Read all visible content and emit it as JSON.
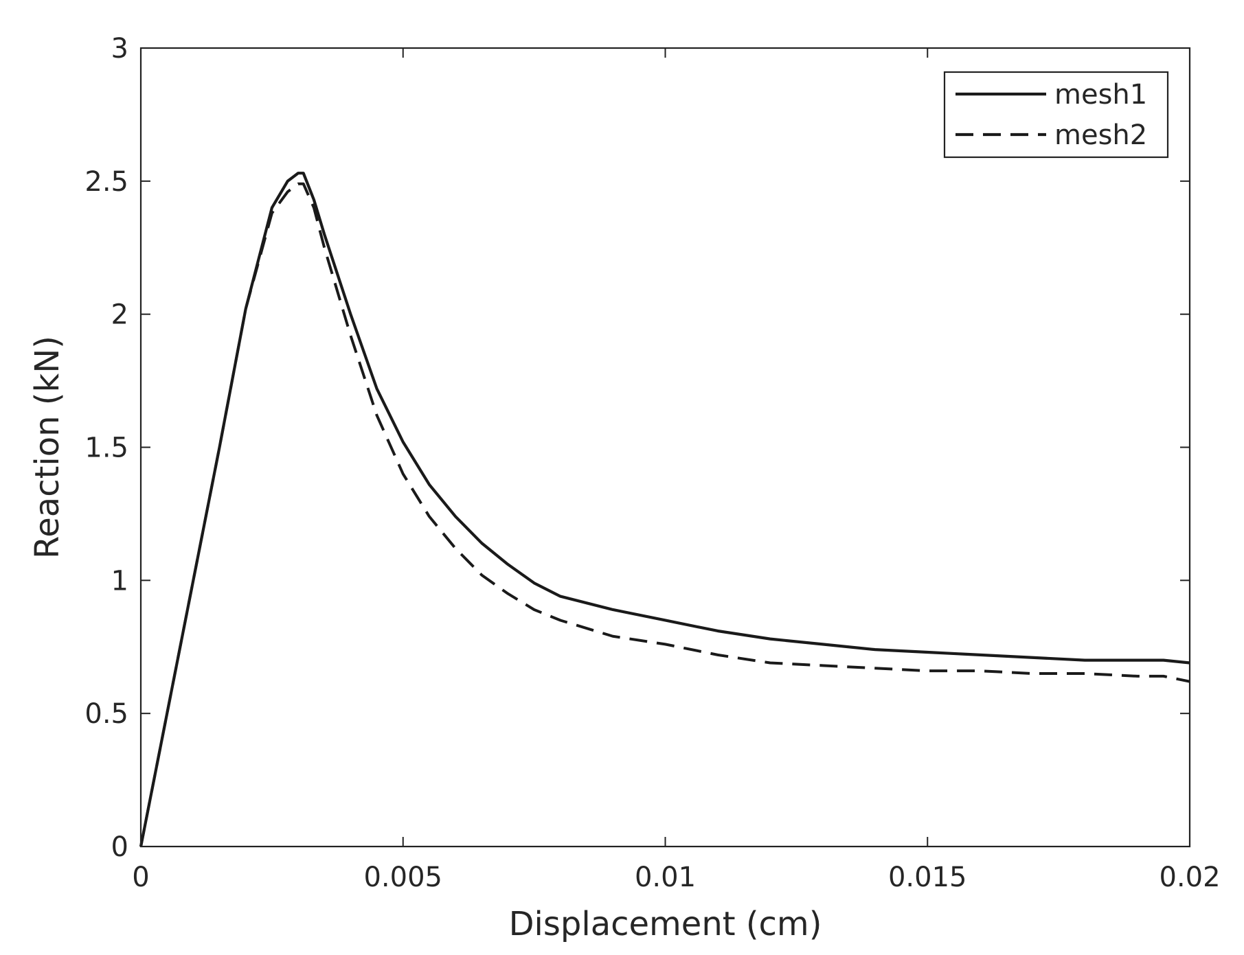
{
  "chart_data": {
    "type": "line",
    "title": "",
    "xlabel": "Displacement (cm)",
    "ylabel": "Reaction (kN)",
    "xlim": [
      0,
      0.02
    ],
    "ylim": [
      0,
      3
    ],
    "grid": false,
    "legend_position": "top-right",
    "xticks": [
      {
        "value": 0,
        "label": "0"
      },
      {
        "value": 0.005,
        "label": "0.005"
      },
      {
        "value": 0.01,
        "label": "0.01"
      },
      {
        "value": 0.015,
        "label": "0.015"
      },
      {
        "value": 0.02,
        "label": "0.02"
      }
    ],
    "yticks": [
      {
        "value": 0,
        "label": "0"
      },
      {
        "value": 0.5,
        "label": "0.5"
      },
      {
        "value": 1,
        "label": "1"
      },
      {
        "value": 1.5,
        "label": "1.5"
      },
      {
        "value": 2,
        "label": "2"
      },
      {
        "value": 2.5,
        "label": "2.5"
      },
      {
        "value": 3,
        "label": "3"
      }
    ],
    "series": [
      {
        "name": "mesh1",
        "line_style": "solid",
        "color": "#1a1a1a",
        "x": [
          0,
          0.0005,
          0.001,
          0.0015,
          0.002,
          0.0025,
          0.0028,
          0.003,
          0.0031,
          0.0033,
          0.0035,
          0.004,
          0.0045,
          0.005,
          0.0055,
          0.006,
          0.0065,
          0.007,
          0.0075,
          0.008,
          0.009,
          0.01,
          0.011,
          0.012,
          0.013,
          0.014,
          0.015,
          0.016,
          0.017,
          0.018,
          0.019,
          0.0195,
          0.02
        ],
        "y": [
          0,
          0.5,
          1.0,
          1.5,
          2.02,
          2.4,
          2.5,
          2.53,
          2.53,
          2.43,
          2.3,
          2.0,
          1.72,
          1.52,
          1.36,
          1.24,
          1.14,
          1.06,
          0.99,
          0.94,
          0.89,
          0.85,
          0.81,
          0.78,
          0.76,
          0.74,
          0.73,
          0.72,
          0.71,
          0.7,
          0.7,
          0.7,
          0.69
        ]
      },
      {
        "name": "mesh2",
        "line_style": "dashed",
        "color": "#1a1a1a",
        "x": [
          0,
          0.0005,
          0.001,
          0.0015,
          0.002,
          0.0025,
          0.0028,
          0.003,
          0.0031,
          0.0033,
          0.0035,
          0.004,
          0.0045,
          0.005,
          0.0055,
          0.006,
          0.0065,
          0.007,
          0.0075,
          0.008,
          0.009,
          0.01,
          0.011,
          0.012,
          0.013,
          0.014,
          0.015,
          0.016,
          0.017,
          0.018,
          0.019,
          0.0195,
          0.02
        ],
        "y": [
          0,
          0.5,
          1.0,
          1.5,
          2.02,
          2.38,
          2.46,
          2.49,
          2.49,
          2.4,
          2.25,
          1.92,
          1.62,
          1.4,
          1.24,
          1.12,
          1.02,
          0.95,
          0.89,
          0.85,
          0.79,
          0.76,
          0.72,
          0.69,
          0.68,
          0.67,
          0.66,
          0.66,
          0.65,
          0.65,
          0.64,
          0.64,
          0.62
        ]
      }
    ]
  }
}
